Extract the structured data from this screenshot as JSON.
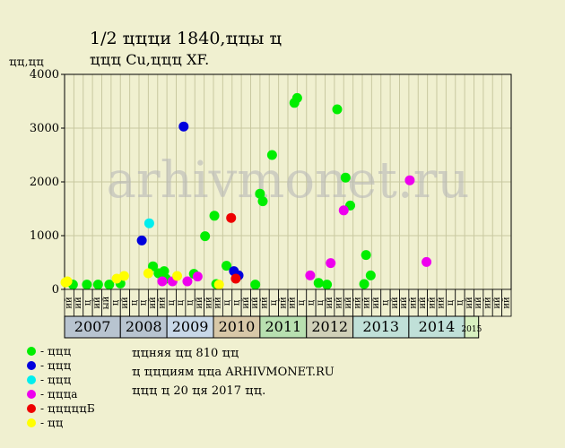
{
  "header": {
    "title_line1": "1/2 ҵҵҵи 1840,ҵҵы ҵ",
    "title_line2": "ҵҵҵ Cu,ҵҵҵ XF.",
    "y_unit": "ҵҵ,ҵҵ"
  },
  "watermark": "arhivmonet.ru",
  "legend": [
    {
      "label": "- ҵҵҵ",
      "color": "#00ee00"
    },
    {
      "label": "- ҵҵҵ",
      "color": "#0000dd"
    },
    {
      "label": "- ҵҵҵ",
      "color": "#00eeee"
    },
    {
      "label": "- ҵҵҵа",
      "color": "#ee00ee"
    },
    {
      "label": "- ҵҵҵҵҵБ",
      "color": "#ee0000"
    },
    {
      "label": "- ҵҵ",
      "color": "#ffff00"
    }
  ],
  "notes": [
    "ҵҵняя ҵҵ 810 ҵҵ",
    "ҵ ҵҵҵиям ҵҵа ARHIVMONET.RU",
    "ҵҵҵ ҵ 20 ҵя 2017 ҵҵ."
  ],
  "chart_data": {
    "type": "scatter",
    "ylim": [
      0,
      4000
    ],
    "y_ticks": [
      0,
      1000,
      2000,
      3000,
      4000
    ],
    "grid": true,
    "x_domain": [
      0,
      48
    ],
    "month_labels": [
      "ий",
      "ий",
      "ц",
      "ий",
      "ый",
      "ц",
      "ий",
      "ц",
      "ц",
      "ий",
      "ий",
      "ц",
      "ц",
      "ц",
      "ий",
      "ий",
      "ий",
      "ц",
      "ц",
      "ий",
      "ий",
      "ий",
      "ц",
      "ий",
      "ий",
      "ц",
      "ц",
      "ц",
      "ий",
      "ий",
      "ий",
      "ий",
      "ий",
      "ий",
      "ц",
      "ий",
      "ий",
      "ий",
      "ий",
      "ий",
      "ий",
      "ц",
      "ц",
      "ий",
      "ий",
      "ий",
      "ий",
      "ий"
    ],
    "years": [
      {
        "label": "2007",
        "start": 0,
        "end": 6,
        "color": "#b8c4d0"
      },
      {
        "label": "2008",
        "start": 6,
        "end": 11,
        "color": "#b8c4d0"
      },
      {
        "label": "2009",
        "start": 11,
        "end": 16,
        "color": "#c8d8e8"
      },
      {
        "label": "2010",
        "start": 16,
        "end": 21,
        "color": "#d8c8a8"
      },
      {
        "label": "2011",
        "start": 21,
        "end": 26,
        "color": "#b8e0b0"
      },
      {
        "label": "2012",
        "start": 26,
        "end": 31,
        "color": "#d0d0b8"
      },
      {
        "label": "2013",
        "start": 31,
        "end": 37,
        "color": "#c0e0d8"
      },
      {
        "label": "2014",
        "start": 37,
        "end": 43,
        "color": "#c0e0d8"
      },
      {
        "label": "2015",
        "start": 43,
        "end": 44.5,
        "color": "#d8f0c0"
      }
    ],
    "series": [
      {
        "color": "#00ee00",
        "points": [
          [
            0.9,
            90
          ],
          [
            2.4,
            90
          ],
          [
            3.6,
            90
          ],
          [
            4.8,
            90
          ],
          [
            6.0,
            110
          ],
          [
            9.5,
            430
          ],
          [
            10.1,
            300
          ],
          [
            10.7,
            340
          ],
          [
            10.9,
            200
          ],
          [
            13.9,
            290
          ],
          [
            15.1,
            990
          ],
          [
            16.1,
            1370
          ],
          [
            16.3,
            100
          ],
          [
            17.4,
            440
          ],
          [
            20.5,
            90
          ],
          [
            21.0,
            1780
          ],
          [
            21.3,
            1640
          ],
          [
            22.3,
            2500
          ],
          [
            24.7,
            3470
          ],
          [
            25.0,
            3560
          ],
          [
            27.3,
            120
          ],
          [
            28.2,
            90
          ],
          [
            29.3,
            3350
          ],
          [
            30.2,
            2080
          ],
          [
            30.7,
            1560
          ],
          [
            32.4,
            640
          ],
          [
            32.9,
            260
          ],
          [
            32.2,
            100
          ]
        ]
      },
      {
        "color": "#0000dd",
        "points": [
          [
            8.3,
            910
          ],
          [
            12.8,
            3030
          ],
          [
            18.2,
            340
          ],
          [
            18.7,
            260
          ]
        ]
      },
      {
        "color": "#00eeee",
        "points": [
          [
            9.1,
            1230
          ]
        ]
      },
      {
        "color": "#ee00ee",
        "points": [
          [
            10.5,
            150
          ],
          [
            11.6,
            150
          ],
          [
            13.2,
            150
          ],
          [
            14.3,
            240
          ],
          [
            26.4,
            260
          ],
          [
            28.6,
            490
          ],
          [
            30.0,
            1470
          ],
          [
            37.1,
            2030
          ],
          [
            38.9,
            510
          ]
        ]
      },
      {
        "color": "#ee0000",
        "points": [
          [
            17.9,
            1330
          ],
          [
            18.4,
            200
          ]
        ]
      },
      {
        "color": "#ffff00",
        "points": [
          [
            0.1,
            130
          ],
          [
            0.3,
            150
          ],
          [
            5.6,
            200
          ],
          [
            6.4,
            250
          ],
          [
            9.0,
            300
          ],
          [
            12.1,
            250
          ],
          [
            16.6,
            90
          ]
        ]
      }
    ]
  }
}
